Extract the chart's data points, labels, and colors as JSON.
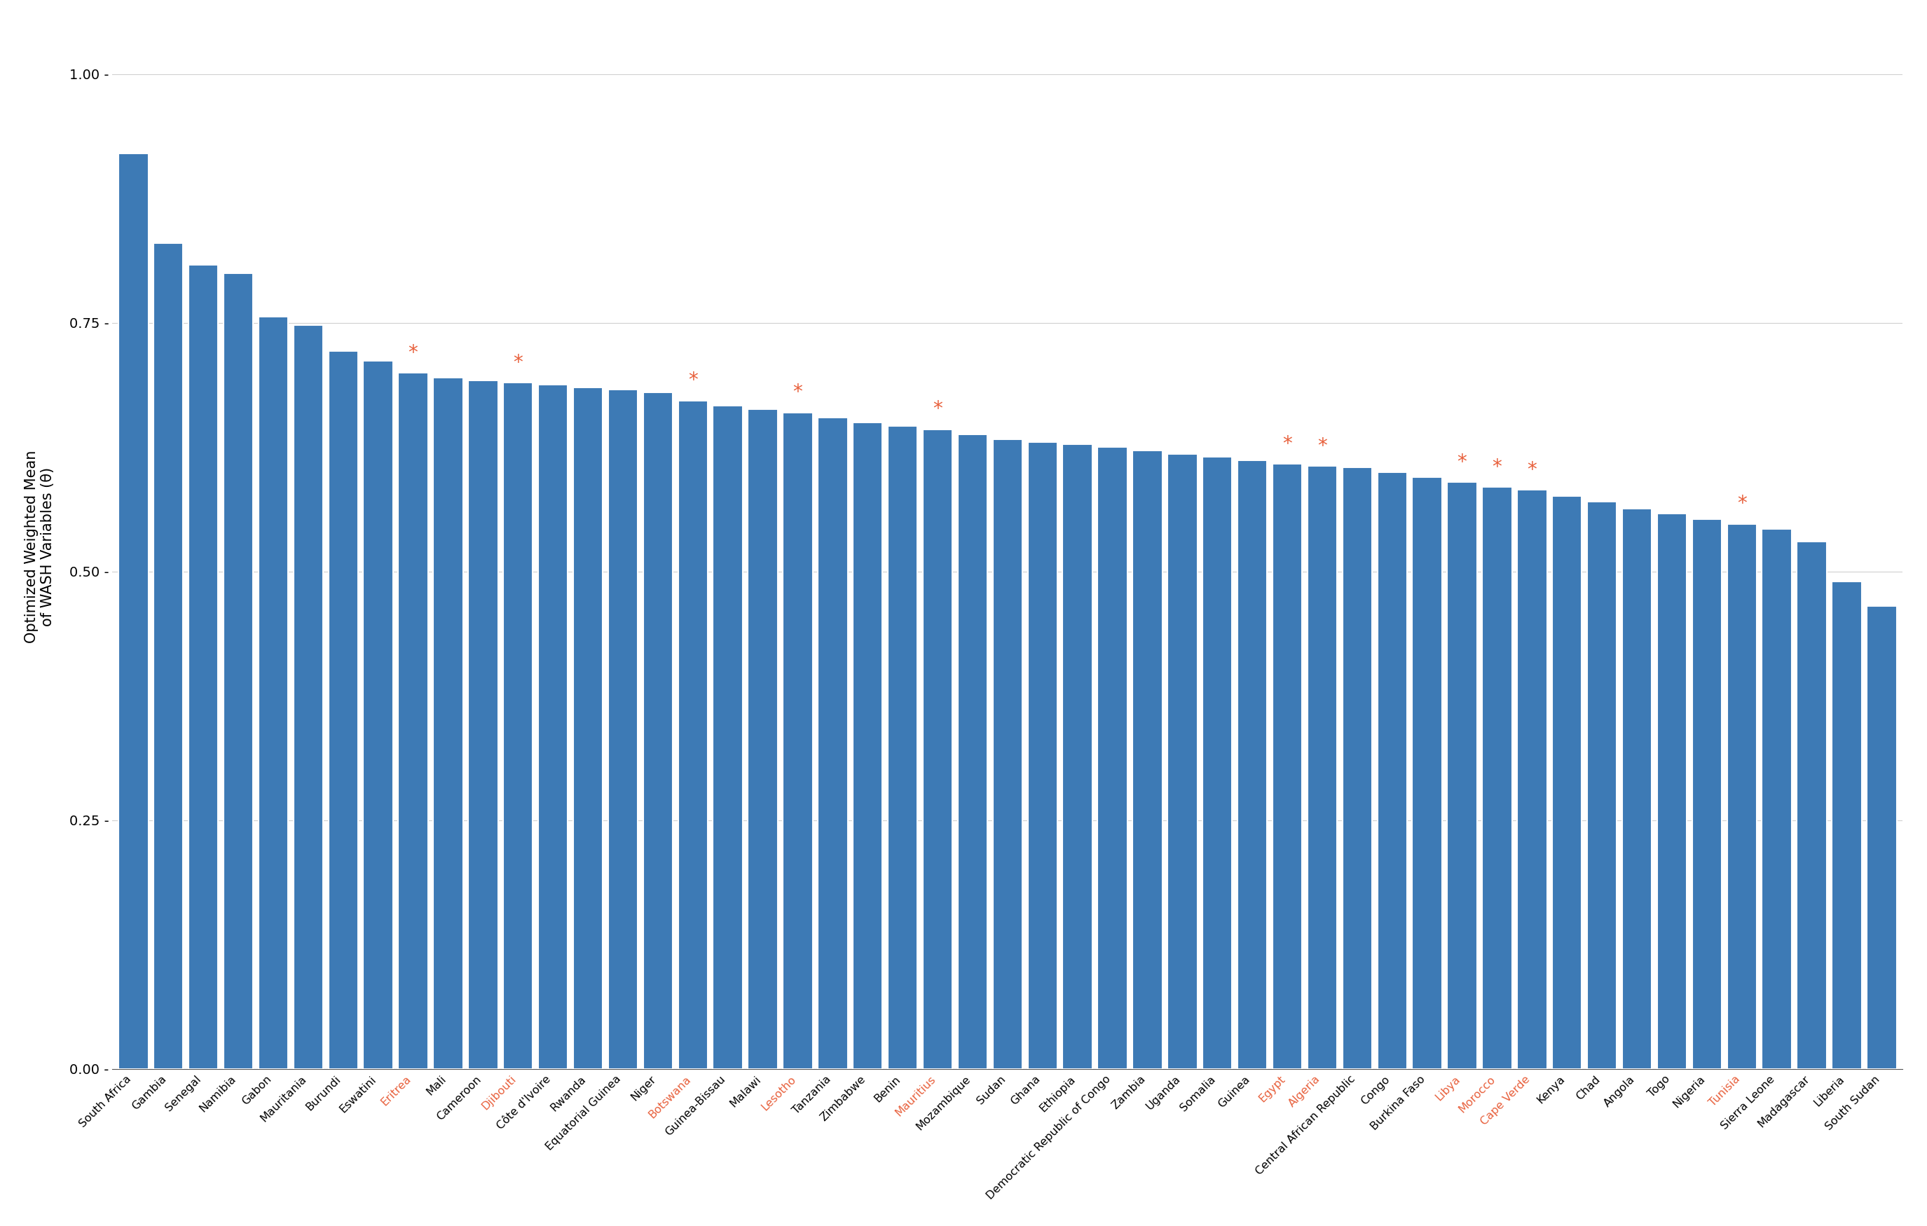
{
  "countries": [
    "South Africa",
    "Gambia",
    "Senegal",
    "Namibia",
    "Gabon",
    "Mauritania",
    "Burundi",
    "Eswatini",
    "Eritrea",
    "Mali",
    "Cameroon",
    "Djibouti",
    "Côte d'Ivoire",
    "Rwanda",
    "Equatorial Guinea",
    "Niger",
    "Botswana",
    "Guinea-Bissau",
    "Malawi",
    "Lesotho",
    "Tanzania",
    "Zimbabwe",
    "Benin",
    "Mauritius",
    "Mozambique",
    "Sudan",
    "Ghana",
    "Ethiopia",
    "Democratic Republic of Congo",
    "Zambia",
    "Uganda",
    "Somalia",
    "Guinea",
    "Egypt",
    "Algeria",
    "Central African Republic",
    "Congo",
    "Burkina Faso",
    "Libya",
    "Morocco",
    "Cape Verde",
    "Kenya",
    "Chad",
    "Angola",
    "Togo",
    "Nigeria",
    "Tunisia",
    "Sierra Leone",
    "Madagascar",
    "Liberia",
    "South Sudan"
  ],
  "values": [
    0.92,
    0.83,
    0.808,
    0.8,
    0.756,
    0.748,
    0.722,
    0.712,
    0.7,
    0.695,
    0.692,
    0.69,
    0.688,
    0.685,
    0.683,
    0.68,
    0.672,
    0.667,
    0.663,
    0.66,
    0.655,
    0.65,
    0.646,
    0.643,
    0.638,
    0.633,
    0.63,
    0.628,
    0.625,
    0.622,
    0.618,
    0.615,
    0.612,
    0.608,
    0.606,
    0.605,
    0.6,
    0.595,
    0.59,
    0.585,
    0.582,
    0.576,
    0.57,
    0.563,
    0.558,
    0.553,
    0.548,
    0.543,
    0.53,
    0.49,
    0.465
  ],
  "imputed": [
    "Eritrea",
    "Djibouti",
    "Botswana",
    "Lesotho",
    "Mauritius",
    "Egypt",
    "Algeria",
    "Libya",
    "Morocco",
    "Cape Verde",
    "Tunisia"
  ],
  "bar_color": "#3d7ab5",
  "imputed_label_color": "#e8603c",
  "star_color": "#e8603c",
  "ylabel": "Optimized Weighted Mean\nof WASH Variables (θ)",
  "ylim": [
    0,
    1.05
  ],
  "yticks": [
    0.0,
    0.25,
    0.5,
    0.75,
    1.0
  ],
  "background_color": "#ffffff",
  "grid_color": "#d0d0d0"
}
